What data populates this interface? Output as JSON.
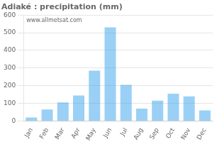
{
  "chart_data": {
    "type": "bar",
    "title": "Adiaké : precipitation (mm)",
    "categories": [
      "Jan",
      "Feb",
      "Mar",
      "Apr",
      "May",
      "Jun",
      "Jul",
      "Aug",
      "Sep",
      "Oct",
      "Nov",
      "Dec"
    ],
    "values": [
      20,
      65,
      105,
      145,
      285,
      530,
      205,
      70,
      115,
      155,
      140,
      60
    ],
    "ylim": [
      0,
      600
    ],
    "yticks": [
      0,
      100,
      200,
      300,
      400,
      500,
      600
    ],
    "grid": true,
    "annotation": "www.allmetsat.com"
  }
}
